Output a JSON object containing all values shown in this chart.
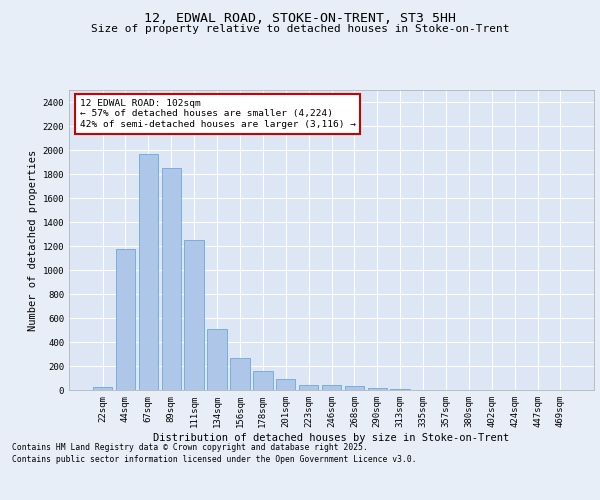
{
  "title1": "12, EDWAL ROAD, STOKE-ON-TRENT, ST3 5HH",
  "title2": "Size of property relative to detached houses in Stoke-on-Trent",
  "xlabel": "Distribution of detached houses by size in Stoke-on-Trent",
  "ylabel": "Number of detached properties",
  "categories": [
    "22sqm",
    "44sqm",
    "67sqm",
    "89sqm",
    "111sqm",
    "134sqm",
    "156sqm",
    "178sqm",
    "201sqm",
    "223sqm",
    "246sqm",
    "268sqm",
    "290sqm",
    "313sqm",
    "335sqm",
    "357sqm",
    "380sqm",
    "402sqm",
    "424sqm",
    "447sqm",
    "469sqm"
  ],
  "values": [
    25,
    1175,
    1970,
    1850,
    1250,
    510,
    270,
    160,
    95,
    45,
    38,
    30,
    20,
    5,
    3,
    2,
    1,
    1,
    0,
    0,
    0
  ],
  "bar_color": "#aec6e8",
  "bar_edge_color": "#5a9fd4",
  "annotation_text": "12 EDWAL ROAD: 102sqm\n← 57% of detached houses are smaller (4,224)\n42% of semi-detached houses are larger (3,116) →",
  "annotation_box_color": "#ffffff",
  "annotation_box_edge_color": "#cc0000",
  "ylim": [
    0,
    2500
  ],
  "yticks": [
    0,
    200,
    400,
    600,
    800,
    1000,
    1200,
    1400,
    1600,
    1800,
    2000,
    2200,
    2400
  ],
  "bg_color": "#e8eef8",
  "plot_bg_color": "#dce6f5",
  "grid_color": "#ffffff",
  "footer_line1": "Contains HM Land Registry data © Crown copyright and database right 2025.",
  "footer_line2": "Contains public sector information licensed under the Open Government Licence v3.0.",
  "title_fontsize": 9.5,
  "subtitle_fontsize": 8,
  "axis_label_fontsize": 7.5,
  "tick_fontsize": 6.5,
  "annotation_fontsize": 6.8,
  "footer_fontsize": 5.8
}
